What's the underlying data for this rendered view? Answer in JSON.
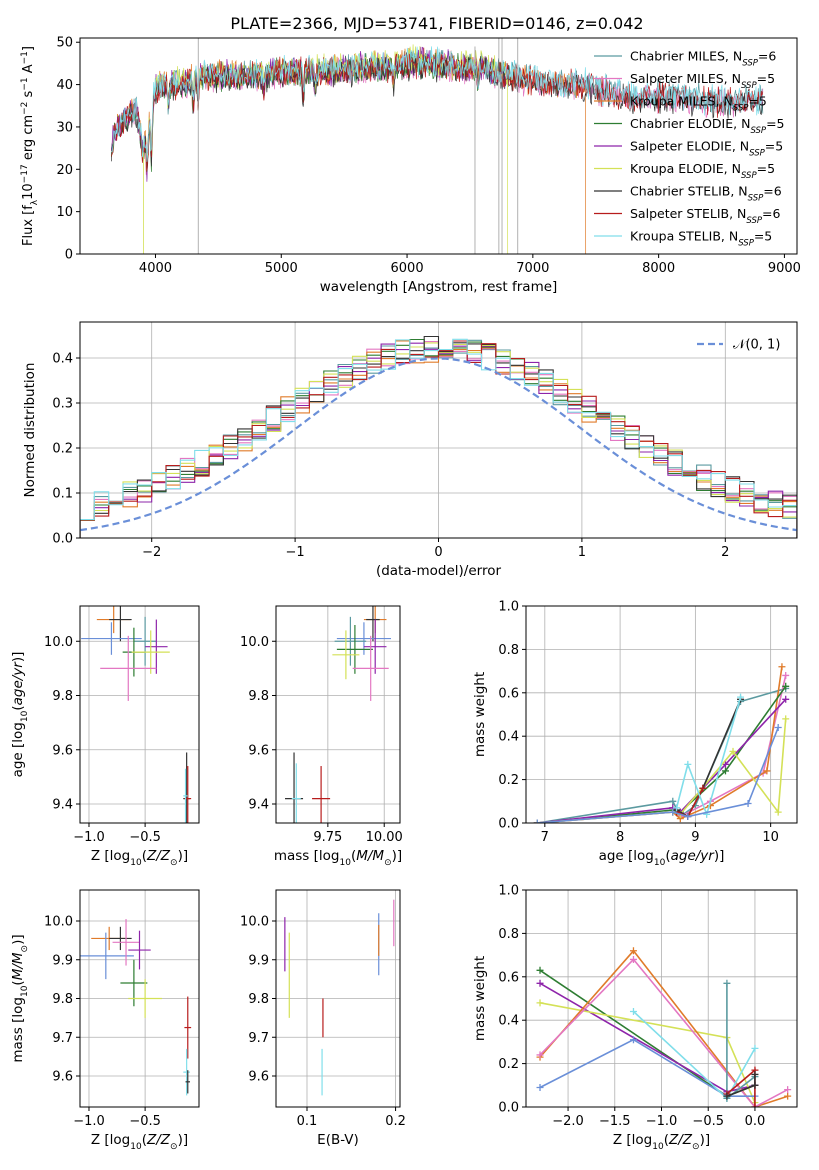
{
  "figure_title": "PLATE=2366, MJD=53741, FIBERID=0146, z=0.042",
  "colors": {
    "Chabrier MILES": "#5b9aa0",
    "Salpeter MILES": "#e377c2",
    "Kroupa MILES": "#e07b2a",
    "Chabrier ELODIE": "#2e7d32",
    "Salpeter ELODIE": "#8e24aa",
    "Kroupa ELODIE": "#d4e157",
    "Chabrier STELIB": "#333333",
    "Salpeter STELIB": "#b71c1c",
    "Kroupa STELIB": "#80deea",
    "Salpeter ELODIE alt": "#6a8fd8",
    "normal": "#6a8fd8",
    "grid": "#b0b0b0"
  },
  "chart_data": [
    {
      "id": "spectrum",
      "type": "line",
      "title": "PLATE=2366, MJD=53741, FIBERID=0146, z=0.042",
      "xlabel": "wavelength [Angstrom, rest frame]",
      "ylabel": "Flux [f_λ 10^-17 erg cm^-2 s^-1 A^-1]",
      "xlim": [
        3400,
        9100
      ],
      "ylim": [
        0,
        51
      ],
      "xticks": [
        4000,
        5000,
        6000,
        7000,
        8000,
        9000
      ],
      "yticks": [
        0,
        10,
        20,
        30,
        40,
        50
      ],
      "grid": false,
      "legend_position": "top-right",
      "series": [
        {
          "name": "Chabrier MILES",
          "nssp": "6",
          "color_key": "Chabrier MILES",
          "range": [
            3650,
            8830
          ],
          "offset": 0.5,
          "drop": null
        },
        {
          "name": "Salpeter MILES",
          "nssp": "5",
          "color_key": "Salpeter MILES",
          "range": [
            3650,
            8830
          ],
          "offset": -0.4,
          "drop": null
        },
        {
          "name": "Kroupa MILES",
          "nssp": "5",
          "color_key": "Kroupa MILES",
          "range": [
            3650,
            7420
          ],
          "offset": 0.2,
          "drop": 7420
        },
        {
          "name": "Chabrier ELODIE",
          "nssp": "5",
          "color_key": "Chabrier ELODIE",
          "range": [
            3650,
            6790
          ],
          "offset": -0.2,
          "drop": null
        },
        {
          "name": "Salpeter ELODIE",
          "nssp": "5",
          "color_key": "Salpeter ELODIE",
          "range": [
            3650,
            6790
          ],
          "offset": 0.3,
          "drop": null
        },
        {
          "name": "Kroupa ELODIE",
          "nssp": "5",
          "color_key": "Kroupa ELODIE",
          "range": [
            3900,
            6800
          ],
          "offset": 0.6,
          "drop": 6800
        },
        {
          "name": "Chabrier STELIB",
          "nssp": "6",
          "color_key": "Chabrier STELIB",
          "range": [
            3650,
            8830
          ],
          "offset": -0.6,
          "drop": null
        },
        {
          "name": "Salpeter STELIB",
          "nssp": "6",
          "color_key": "Salpeter STELIB",
          "range": [
            3650,
            8830
          ],
          "offset": 0.0,
          "drop": null
        },
        {
          "name": "Kroupa STELIB",
          "nssp": "5",
          "color_key": "Kroupa STELIB",
          "range": [
            3650,
            8830
          ],
          "offset": 0.4,
          "drop": null
        }
      ],
      "spectrum_profile": {
        "x": [
          3650,
          3700,
          3800,
          3850,
          3900,
          3950,
          4000,
          4100,
          4200,
          4300,
          4400,
          4600,
          4800,
          5000,
          5200,
          5400,
          5600,
          5800,
          6000,
          6200,
          6400,
          6600,
          6800,
          7000,
          7200,
          7400,
          7600,
          7800,
          8000,
          8200,
          8400,
          8600,
          8830
        ],
        "y": [
          26,
          30,
          33,
          34,
          24,
          30,
          39,
          40,
          40,
          41,
          42,
          42,
          42,
          43,
          43,
          43,
          44,
          44,
          45,
          45,
          44,
          44,
          42,
          41,
          40,
          40,
          38,
          37,
          37,
          37,
          36,
          36,
          36
        ]
      },
      "absorption_lines": [
        {
          "x": 3934,
          "depth": 10
        },
        {
          "x": 3969,
          "depth": 12
        },
        {
          "x": 4102,
          "depth": 5
        },
        {
          "x": 4300,
          "depth": 7
        },
        {
          "x": 4340,
          "depth": 5
        },
        {
          "x": 4861,
          "depth": 4
        },
        {
          "x": 5175,
          "depth": 6
        },
        {
          "x": 5270,
          "depth": 4
        },
        {
          "x": 5890,
          "depth": 5
        },
        {
          "x": 6563,
          "depth": 4
        }
      ],
      "spikes": [
        {
          "x": 4340,
          "top": 51
        },
        {
          "x": 6540,
          "top": 49
        },
        {
          "x": 6730,
          "top": 51
        },
        {
          "x": 6755,
          "top": 51
        },
        {
          "x": 6880,
          "top": 51
        }
      ]
    },
    {
      "id": "residuals",
      "type": "histogram",
      "xlabel": "(data-model)/error",
      "ylabel": "Normed distribution",
      "xlim": [
        -2.5,
        2.5
      ],
      "ylim": [
        0,
        0.48
      ],
      "xticks": [
        -2,
        -1,
        0,
        1,
        2
      ],
      "yticks": [
        0,
        0.1,
        0.2,
        0.3,
        0.4
      ],
      "grid": true,
      "legend_position": "top-right",
      "legend": [
        "𝒩(0, 1)"
      ],
      "bin_width": 0.1,
      "bin_start": -2.5,
      "series_color_keys": [
        "Chabrier MILES",
        "Salpeter MILES",
        "Kroupa MILES",
        "Chabrier ELODIE",
        "Salpeter ELODIE",
        "Kroupa ELODIE",
        "Chabrier STELIB",
        "Salpeter STELIB",
        "Kroupa STELIB"
      ]
    },
    {
      "id": "age_vs_Z",
      "type": "errorbar",
      "xlabel": "Z [log10(Z/Z⊙)]",
      "ylabel": "age [log10(age/yr)]",
      "xlim": [
        -1.08,
        -0.02
      ],
      "ylim": [
        9.33,
        10.13
      ],
      "xticks": [
        -1.0,
        -0.5
      ],
      "yticks": [
        9.4,
        9.6,
        9.8,
        10.0
      ],
      "grid": true,
      "points": [
        {
          "x": -0.78,
          "y": 10.08,
          "xerr": 0.15,
          "yerr": 0.05,
          "color_key": "Kroupa MILES"
        },
        {
          "x": -0.72,
          "y": 10.08,
          "xerr": 0.1,
          "yerr": 0.08,
          "color_key": "Chabrier STELIB"
        },
        {
          "x": -0.8,
          "y": 10.01,
          "xerr": 0.27,
          "yerr": 0.06,
          "color_key": "Salpeter ELODIE alt"
        },
        {
          "x": -0.5,
          "y": 10.0,
          "xerr": 0.1,
          "yerr": 0.09,
          "color_key": "Chabrier MILES"
        },
        {
          "x": -0.4,
          "y": 9.98,
          "xerr": 0.1,
          "yerr": 0.1,
          "color_key": "Salpeter ELODIE"
        },
        {
          "x": -0.6,
          "y": 9.96,
          "xerr": 0.1,
          "yerr": 0.09,
          "color_key": "Chabrier ELODIE"
        },
        {
          "x": -0.45,
          "y": 9.96,
          "xerr": 0.17,
          "yerr": 0.08,
          "color_key": "Kroupa ELODIE"
        },
        {
          "x": -0.65,
          "y": 9.9,
          "xerr": 0.25,
          "yerr": 0.12,
          "color_key": "Salpeter MILES"
        },
        {
          "x": -0.13,
          "y": 9.42,
          "xerr": 0.03,
          "yerr": 0.17,
          "color_key": "Chabrier STELIB"
        },
        {
          "x": -0.12,
          "y": 9.42,
          "xerr": 0.03,
          "yerr": 0.12,
          "color_key": "Salpeter STELIB"
        },
        {
          "x": -0.14,
          "y": 9.43,
          "xerr": 0.02,
          "yerr": 0.1,
          "color_key": "Kroupa STELIB"
        }
      ]
    },
    {
      "id": "age_vs_mass",
      "type": "errorbar",
      "xlabel": "mass [log10(M/M⊙)]",
      "ylabel": "",
      "xlim": [
        9.52,
        10.07
      ],
      "ylim": [
        9.33,
        10.13
      ],
      "xticks": [
        9.75,
        10.0
      ],
      "yticks": [
        9.4,
        9.6,
        9.8,
        10.0
      ],
      "grid": true,
      "points": [
        {
          "x": 9.96,
          "y": 10.08,
          "xerr": 0.05,
          "yerr": 0.05,
          "color_key": "Kroupa MILES"
        },
        {
          "x": 9.95,
          "y": 10.08,
          "xerr": 0.03,
          "yerr": 0.08,
          "color_key": "Chabrier STELIB"
        },
        {
          "x": 9.91,
          "y": 10.01,
          "xerr": 0.12,
          "yerr": 0.06,
          "color_key": "Salpeter ELODIE alt"
        },
        {
          "x": 9.85,
          "y": 10.0,
          "xerr": 0.07,
          "yerr": 0.09,
          "color_key": "Chabrier MILES"
        },
        {
          "x": 9.96,
          "y": 9.98,
          "xerr": 0.05,
          "yerr": 0.1,
          "color_key": "Salpeter ELODIE"
        },
        {
          "x": 9.87,
          "y": 9.97,
          "xerr": 0.08,
          "yerr": 0.09,
          "color_key": "Chabrier ELODIE"
        },
        {
          "x": 9.83,
          "y": 9.95,
          "xerr": 0.06,
          "yerr": 0.09,
          "color_key": "Kroupa ELODIE"
        },
        {
          "x": 9.94,
          "y": 9.9,
          "xerr": 0.08,
          "yerr": 0.12,
          "color_key": "Salpeter MILES"
        },
        {
          "x": 9.6,
          "y": 9.42,
          "xerr": 0.04,
          "yerr": 0.17,
          "color_key": "Chabrier STELIB"
        },
        {
          "x": 9.72,
          "y": 9.42,
          "xerr": 0.04,
          "yerr": 0.12,
          "color_key": "Salpeter STELIB"
        },
        {
          "x": 9.61,
          "y": 9.42,
          "xerr": 0.02,
          "yerr": 0.13,
          "color_key": "Kroupa STELIB"
        }
      ]
    },
    {
      "id": "weight_vs_age",
      "type": "line",
      "xlabel": "age [log10(age/yr)]",
      "ylabel": "mass weight",
      "xlim": [
        6.75,
        10.35
      ],
      "ylim": [
        0,
        1.0
      ],
      "xticks": [
        7,
        8,
        9,
        10
      ],
      "yticks": [
        0.0,
        0.2,
        0.4,
        0.6,
        0.8,
        1.0
      ],
      "grid": true,
      "series": [
        {
          "color_key": "Chabrier MILES",
          "x": [
            6.9,
            8.7,
            8.8,
            9.0,
            9.6,
            10.2
          ],
          "y": [
            0.0,
            0.1,
            0.03,
            0.08,
            0.56,
            0.62
          ]
        },
        {
          "color_key": "Salpeter MILES",
          "x": [
            6.9,
            8.7,
            8.8,
            9.2,
            9.9,
            10.2
          ],
          "y": [
            0.0,
            0.05,
            0.03,
            0.1,
            0.23,
            0.68
          ]
        },
        {
          "color_key": "Kroupa MILES",
          "x": [
            6.9,
            8.7,
            8.8,
            9.2,
            9.95,
            10.15
          ],
          "y": [
            0.0,
            0.05,
            0.02,
            0.08,
            0.24,
            0.72
          ]
        },
        {
          "color_key": "Chabrier ELODIE",
          "x": [
            6.9,
            8.7,
            8.8,
            9.4,
            10.2
          ],
          "y": [
            0.0,
            0.06,
            0.05,
            0.24,
            0.63
          ]
        },
        {
          "color_key": "Salpeter ELODIE",
          "x": [
            6.9,
            8.7,
            8.8,
            9.4,
            10.2
          ],
          "y": [
            0.0,
            0.07,
            0.05,
            0.27,
            0.57
          ]
        },
        {
          "color_key": "Kroupa ELODIE",
          "x": [
            6.9,
            8.7,
            8.8,
            9.5,
            10.1,
            10.2
          ],
          "y": [
            0.0,
            0.05,
            0.04,
            0.33,
            0.05,
            0.48
          ]
        },
        {
          "color_key": "Chabrier STELIB",
          "x": [
            8.75,
            8.9,
            9.1,
            9.6
          ],
          "y": [
            0.06,
            0.03,
            0.16,
            0.57
          ]
        },
        {
          "color_key": "Salpeter STELIB",
          "x": [
            8.75,
            8.9,
            9.1
          ],
          "y": [
            0.05,
            0.03,
            0.16
          ]
        },
        {
          "color_key": "Kroupa STELIB",
          "x": [
            8.75,
            8.9,
            9.15,
            9.6
          ],
          "y": [
            0.07,
            0.27,
            0.04,
            0.58
          ]
        },
        {
          "color_key": "normal",
          "x": [
            6.9,
            8.7,
            8.9,
            9.7,
            10.1
          ],
          "y": [
            0.0,
            0.05,
            0.03,
            0.09,
            0.44
          ]
        }
      ]
    },
    {
      "id": "mass_vs_Z",
      "type": "errorbar",
      "xlabel": "Z [log10(Z/Z⊙)]",
      "ylabel": "mass [log10(M/M⊙)]",
      "xlim": [
        -1.08,
        -0.02
      ],
      "ylim": [
        9.52,
        10.08
      ],
      "xticks": [
        -1.0,
        -0.5
      ],
      "yticks": [
        9.6,
        9.7,
        9.8,
        9.9,
        10.0
      ],
      "grid": true,
      "points": [
        {
          "x": -0.82,
          "y": 9.955,
          "xerr": 0.16,
          "yerr": 0.03,
          "color_key": "Kroupa MILES"
        },
        {
          "x": -0.72,
          "y": 9.955,
          "xerr": 0.1,
          "yerr": 0.03,
          "color_key": "Chabrier STELIB"
        },
        {
          "x": -0.85,
          "y": 9.91,
          "xerr": 0.25,
          "yerr": 0.06,
          "color_key": "Salpeter ELODIE alt"
        },
        {
          "x": -0.67,
          "y": 9.945,
          "xerr": 0.12,
          "yerr": 0.06,
          "color_key": "Salpeter MILES"
        },
        {
          "x": -0.55,
          "y": 9.925,
          "xerr": 0.1,
          "yerr": 0.05,
          "color_key": "Salpeter ELODIE"
        },
        {
          "x": -0.6,
          "y": 9.84,
          "xerr": 0.12,
          "yerr": 0.06,
          "color_key": "Chabrier ELODIE"
        },
        {
          "x": -0.5,
          "y": 9.8,
          "xerr": 0.15,
          "yerr": 0.05,
          "color_key": "Kroupa ELODIE"
        },
        {
          "x": -0.12,
          "y": 9.725,
          "xerr": 0.03,
          "yerr": 0.08,
          "color_key": "Salpeter STELIB"
        },
        {
          "x": -0.13,
          "y": 9.61,
          "xerr": 0.03,
          "yerr": 0.06,
          "color_key": "Kroupa STELIB"
        },
        {
          "x": -0.12,
          "y": 9.585,
          "xerr": 0.02,
          "yerr": 0.03,
          "color_key": "Chabrier STELIB"
        }
      ]
    },
    {
      "id": "mass_vs_EBV",
      "type": "errorbar",
      "xlabel": "E(B-V)",
      "ylabel": "",
      "xlim": [
        0.065,
        0.205
      ],
      "ylim": [
        9.52,
        10.08
      ],
      "xticks": [
        0.1,
        0.2
      ],
      "yticks": [
        9.6,
        9.7,
        9.8,
        9.9,
        10.0
      ],
      "grid": true,
      "points": [
        {
          "x": 0.075,
          "y": 9.94,
          "xerr": 0,
          "yerr": 0.07,
          "color_key": "Salpeter ELODIE"
        },
        {
          "x": 0.08,
          "y": 9.86,
          "xerr": 0,
          "yerr": 0.11,
          "color_key": "Kroupa ELODIE"
        },
        {
          "x": 0.118,
          "y": 9.75,
          "xerr": 0,
          "yerr": 0.05,
          "color_key": "Salpeter STELIB"
        },
        {
          "x": 0.117,
          "y": 9.61,
          "xerr": 0,
          "yerr": 0.06,
          "color_key": "Kroupa STELIB"
        },
        {
          "x": 0.181,
          "y": 9.94,
          "xerr": 0,
          "yerr": 0.08,
          "color_key": "Salpeter ELODIE alt"
        },
        {
          "x": 0.181,
          "y": 9.95,
          "xerr": 0,
          "yerr": 0.04,
          "color_key": "Kroupa MILES"
        },
        {
          "x": 0.198,
          "y": 9.995,
          "xerr": 0,
          "yerr": 0.06,
          "color_key": "Salpeter MILES"
        }
      ]
    },
    {
      "id": "weight_vs_Z",
      "type": "line",
      "xlabel": "Z [log10(Z/Z⊙)]",
      "ylabel": "mass weight",
      "xlim": [
        -2.45,
        0.45
      ],
      "ylim": [
        0,
        1.0
      ],
      "xticks": [
        -2.0,
        -1.5,
        -1.0,
        -0.5,
        0.0
      ],
      "yticks": [
        0.0,
        0.2,
        0.4,
        0.6,
        0.8,
        1.0
      ],
      "grid": true,
      "series": [
        {
          "color_key": "Chabrier ELODIE",
          "x": [
            -2.3,
            -0.3,
            0.0
          ],
          "y": [
            0.63,
            0.05,
            0.1
          ]
        },
        {
          "color_key": "Salpeter ELODIE",
          "x": [
            -2.3,
            -0.3,
            0.0
          ],
          "y": [
            0.57,
            0.07,
            0.1
          ]
        },
        {
          "color_key": "Kroupa ELODIE",
          "x": [
            -2.3,
            -0.3,
            0.0
          ],
          "y": [
            0.48,
            0.32,
            0.02
          ]
        },
        {
          "color_key": "Kroupa MILES",
          "x": [
            -2.3,
            -1.3,
            0.0,
            0.35
          ],
          "y": [
            0.23,
            0.72,
            0.0,
            0.05
          ]
        },
        {
          "color_key": "Salpeter MILES",
          "x": [
            -2.3,
            -1.3,
            0.0,
            0.35
          ],
          "y": [
            0.24,
            0.68,
            0.0,
            0.08
          ]
        },
        {
          "color_key": "normal",
          "x": [
            -2.3,
            -1.3,
            -0.3,
            0.0
          ],
          "y": [
            0.09,
            0.31,
            0.05,
            0.05
          ]
        },
        {
          "color_key": "Kroupa STELIB",
          "x": [
            -1.3,
            -0.3,
            0.0
          ],
          "y": [
            0.44,
            0.04,
            0.27
          ]
        },
        {
          "color_key": "Chabrier MILES",
          "x": [
            -0.3,
            -0.3,
            0.0
          ],
          "y": [
            0.57,
            0.04,
            0.14
          ]
        },
        {
          "color_key": "Salpeter STELIB",
          "x": [
            -0.3,
            0.0,
            0.0
          ],
          "y": [
            0.06,
            0.17,
            0.0
          ]
        },
        {
          "color_key": "Chabrier STELIB",
          "x": [
            -0.3,
            0.0,
            0.0
          ],
          "y": [
            0.05,
            0.1,
            0.15
          ]
        }
      ]
    }
  ]
}
